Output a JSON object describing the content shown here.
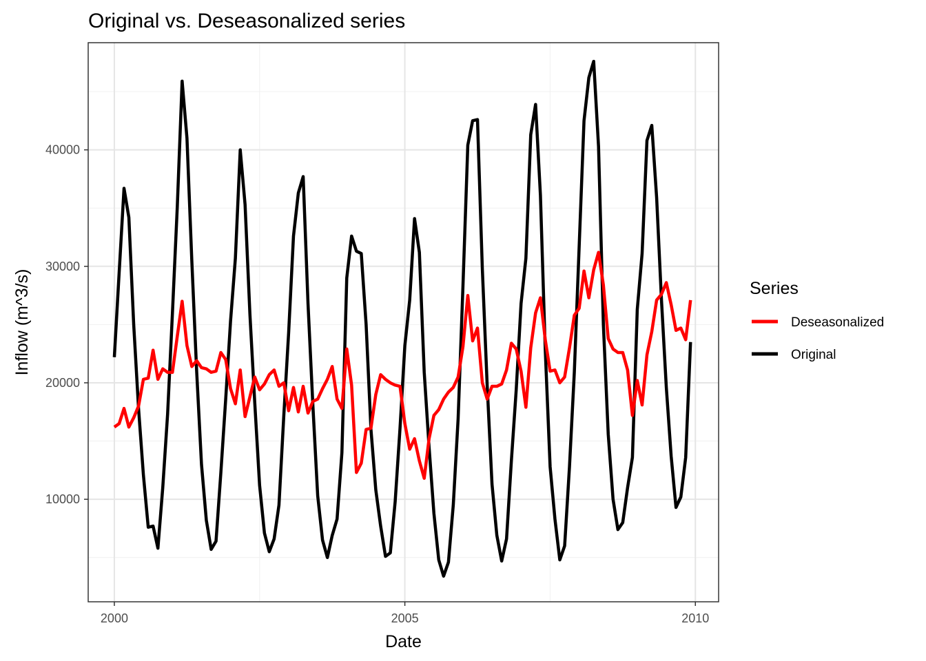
{
  "chart_data": {
    "type": "line",
    "title": "Original vs. Deseasonalized series",
    "xlabel": "Date",
    "ylabel": "Inflow (m^3/s)",
    "xlim": [
      1999.55,
      2010.4
    ],
    "ylim": [
      1200,
      49200
    ],
    "x_ticks": [
      2000,
      2005,
      2010
    ],
    "x_tick_labels": [
      "2000",
      "2005",
      "2010"
    ],
    "y_ticks": [
      10000,
      20000,
      30000,
      40000
    ],
    "y_tick_labels": [
      "10000",
      "20000",
      "30000",
      "40000"
    ],
    "grid": true,
    "legend": {
      "title": "Series",
      "position": "right"
    },
    "start": 2000.0,
    "step": 0.083333,
    "series": [
      {
        "name": "Deseasonalized",
        "color": "#ff0000",
        "values": [
          16200,
          16500,
          17800,
          16200,
          17000,
          18000,
          20300,
          20400,
          22800,
          20300,
          21200,
          20900,
          20900,
          24000,
          27000,
          23200,
          21400,
          21900,
          21300,
          21200,
          20900,
          21000,
          22600,
          22000,
          19500,
          18200,
          21100,
          17100,
          18800,
          20500,
          19400,
          19900,
          20700,
          21100,
          19700,
          20000,
          17600,
          19600,
          17500,
          19700,
          17400,
          18400,
          18600,
          19500,
          20300,
          21400,
          18600,
          17800,
          22900,
          19800,
          12300,
          13100,
          16000,
          16100,
          19000,
          20700,
          20300,
          20000,
          19800,
          19700,
          16500,
          14300,
          15200,
          13300,
          11800,
          15200,
          17200,
          17700,
          18600,
          19200,
          19600,
          20500,
          23100,
          27500,
          23600,
          24700,
          20000,
          18600,
          19700,
          19700,
          19900,
          21100,
          23400,
          22900,
          21000,
          17900,
          23000,
          26000,
          27300,
          23700,
          21000,
          21100,
          20000,
          20500,
          23000,
          25800,
          26400,
          29600,
          27300,
          29700,
          31200,
          28400,
          23800,
          22900,
          22600,
          22600,
          21100,
          17200,
          20200,
          18100,
          22400,
          24400,
          27100,
          27600,
          28600,
          26700,
          24500,
          24700,
          23700,
          27100
        ]
      },
      {
        "name": "Original",
        "color": "#000000",
        "values": [
          22200,
          29500,
          36700,
          34200,
          25000,
          17800,
          12100,
          7600,
          7700,
          5800,
          11000,
          17300,
          26000,
          35100,
          45900,
          41000,
          30500,
          21000,
          13000,
          8200,
          5700,
          6400,
          12300,
          18600,
          25300,
          30700,
          40000,
          35300,
          25900,
          18300,
          11200,
          7100,
          5500,
          6600,
          9500,
          17200,
          24300,
          32600,
          36300,
          37700,
          26800,
          18100,
          10300,
          6500,
          5000,
          6900,
          8300,
          14000,
          29000,
          32600,
          31300,
          31100,
          25000,
          16000,
          10800,
          7700,
          5100,
          5400,
          9800,
          16100,
          23200,
          27100,
          34100,
          31200,
          20900,
          14500,
          8800,
          4800,
          3400,
          4600,
          9500,
          16900,
          28300,
          40400,
          42500,
          42600,
          29800,
          19800,
          11300,
          6900,
          4700,
          6600,
          13300,
          19400,
          26800,
          30700,
          41300,
          43900,
          36100,
          22800,
          12800,
          8300,
          4800,
          6000,
          12800,
          20900,
          31700,
          42500,
          46200,
          47600,
          40300,
          25000,
          15600,
          10000,
          7400,
          8000,
          11000,
          13600,
          26300,
          31100,
          40800,
          42100,
          35900,
          27100,
          19600,
          13700,
          9300,
          10200,
          13600,
          23500
        ]
      }
    ]
  }
}
